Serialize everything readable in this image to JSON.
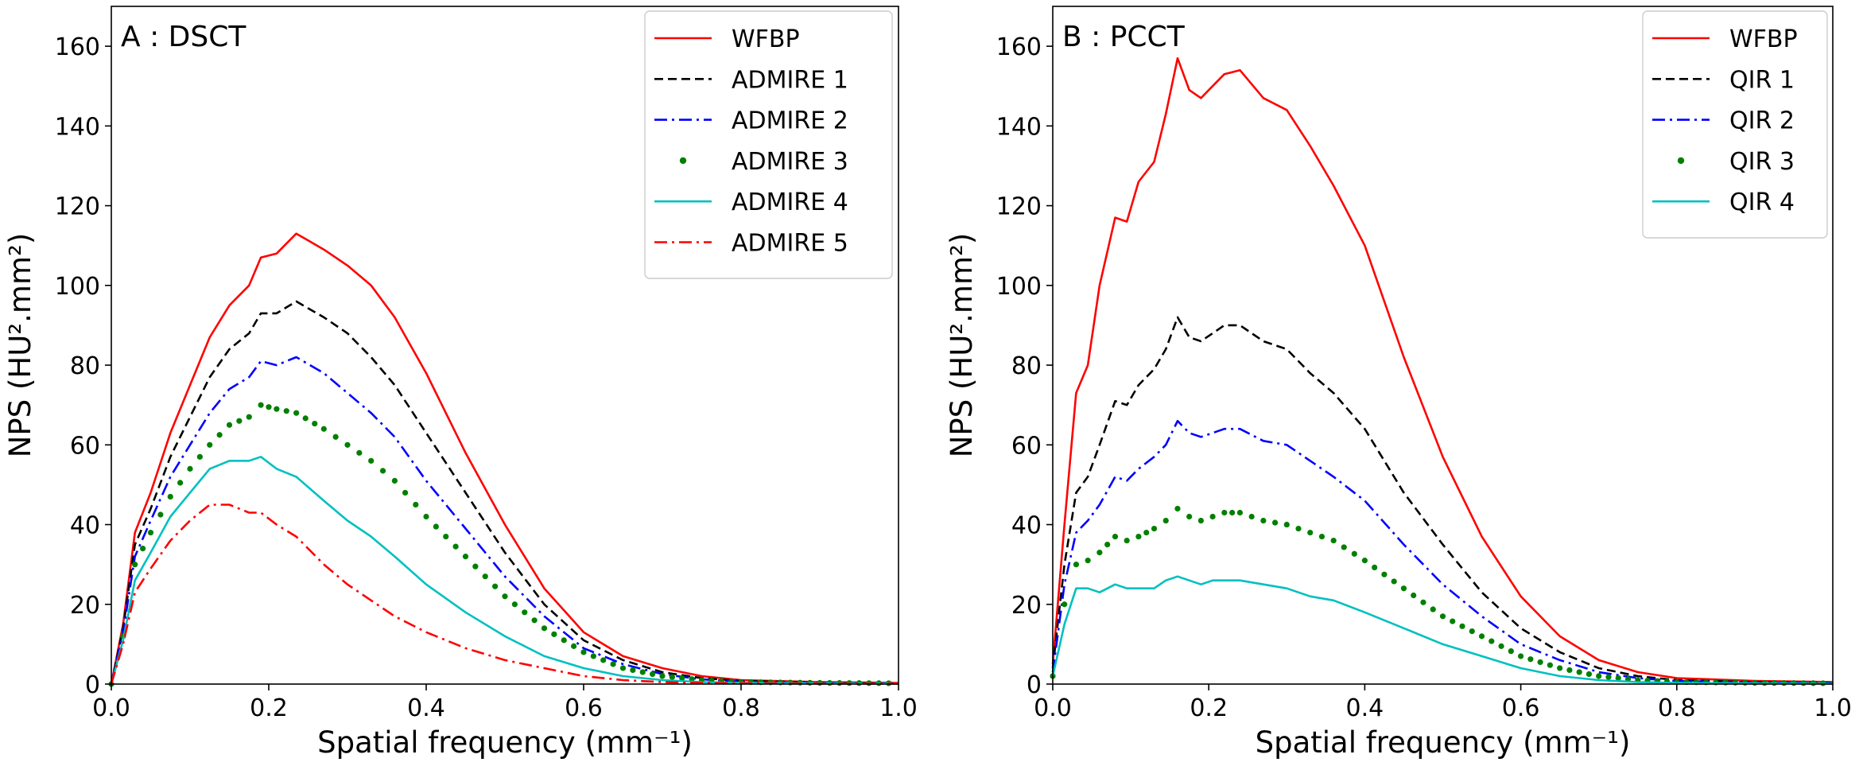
{
  "chart_data": [
    {
      "type": "line",
      "title": "A : DSCT",
      "xlabel": "Spatial frequency (mm⁻¹)",
      "ylabel": "NPS (HU².mm²)",
      "xlim": [
        0,
        1.0
      ],
      "ylim": [
        0,
        170
      ],
      "xticks": [
        "0.0",
        "0.2",
        "0.4",
        "0.6",
        "0.8",
        "1.0"
      ],
      "yticks": [
        "0",
        "20",
        "40",
        "60",
        "80",
        "100",
        "120",
        "140",
        "160"
      ],
      "legend_position": "top-right",
      "series": [
        {
          "name": "WFBP",
          "color": "#ff0000",
          "style": "solid",
          "x": [
            0,
            0.015,
            0.03,
            0.05,
            0.075,
            0.1,
            0.125,
            0.15,
            0.175,
            0.19,
            0.21,
            0.235,
            0.27,
            0.3,
            0.33,
            0.36,
            0.4,
            0.45,
            0.5,
            0.55,
            0.6,
            0.65,
            0.7,
            0.75,
            0.8,
            0.9,
            1.0
          ],
          "values": [
            0,
            15,
            38,
            48,
            63,
            75,
            87,
            95,
            100,
            107,
            108,
            113,
            109,
            105,
            100,
            92,
            78,
            58,
            40,
            24,
            13,
            7,
            4,
            2,
            1,
            0.5,
            0.3
          ]
        },
        {
          "name": "ADMIRE 1",
          "color": "#000000",
          "style": "dashed",
          "x": [
            0,
            0.015,
            0.03,
            0.05,
            0.075,
            0.1,
            0.125,
            0.15,
            0.175,
            0.19,
            0.21,
            0.235,
            0.27,
            0.3,
            0.33,
            0.36,
            0.4,
            0.45,
            0.5,
            0.55,
            0.6,
            0.65,
            0.7,
            0.75,
            0.8,
            0.9,
            1.0
          ],
          "values": [
            0,
            14,
            35,
            44,
            57,
            67,
            77,
            84,
            88,
            93,
            93,
            96,
            92,
            88,
            82,
            75,
            63,
            48,
            33,
            20,
            11,
            6,
            3,
            1.5,
            0.8,
            0.4,
            0.2
          ]
        },
        {
          "name": "ADMIRE 2",
          "color": "#0000ff",
          "style": "dashdot",
          "x": [
            0,
            0.015,
            0.03,
            0.05,
            0.075,
            0.1,
            0.125,
            0.15,
            0.175,
            0.19,
            0.21,
            0.235,
            0.27,
            0.3,
            0.33,
            0.36,
            0.4,
            0.45,
            0.5,
            0.55,
            0.6,
            0.65,
            0.7,
            0.75,
            0.8,
            0.9,
            1.0
          ],
          "values": [
            0,
            13,
            32,
            41,
            52,
            60,
            68,
            74,
            77,
            81,
            80,
            82,
            78,
            73,
            68,
            62,
            51,
            39,
            27,
            17,
            9,
            5,
            2.5,
            1.2,
            0.6,
            0.3,
            0.2
          ]
        },
        {
          "name": "ADMIRE 3",
          "color": "#008000",
          "style": "dotted",
          "x": [
            0,
            0.015,
            0.03,
            0.05,
            0.075,
            0.1,
            0.125,
            0.15,
            0.175,
            0.19,
            0.21,
            0.235,
            0.27,
            0.3,
            0.33,
            0.36,
            0.4,
            0.45,
            0.5,
            0.55,
            0.6,
            0.65,
            0.7,
            0.75,
            0.8,
            0.9,
            1.0
          ],
          "values": [
            0,
            12,
            30,
            38,
            47,
            54,
            60,
            65,
            67,
            70,
            69,
            68,
            64,
            60,
            56,
            51,
            42,
            32,
            22,
            14,
            8,
            4,
            2,
            1,
            0.5,
            0.3,
            0.2
          ]
        },
        {
          "name": "ADMIRE 4",
          "color": "#00c0c0",
          "style": "solid",
          "x": [
            0,
            0.015,
            0.03,
            0.05,
            0.075,
            0.1,
            0.125,
            0.15,
            0.175,
            0.19,
            0.21,
            0.235,
            0.27,
            0.3,
            0.33,
            0.36,
            0.4,
            0.45,
            0.5,
            0.55,
            0.6,
            0.65,
            0.7,
            0.75,
            0.8,
            0.9,
            1.0
          ],
          "values": [
            0,
            11,
            26,
            33,
            42,
            48,
            54,
            56,
            56,
            57,
            54,
            52,
            46,
            41,
            37,
            32,
            25,
            18,
            12,
            7,
            4,
            2,
            1,
            0.5,
            0.3,
            0.2,
            0.1
          ]
        },
        {
          "name": "ADMIRE 5",
          "color": "#ff0000",
          "style": "dashdot",
          "x": [
            0,
            0.015,
            0.03,
            0.05,
            0.075,
            0.1,
            0.125,
            0.15,
            0.175,
            0.19,
            0.21,
            0.235,
            0.27,
            0.3,
            0.33,
            0.36,
            0.4,
            0.45,
            0.5,
            0.55,
            0.6,
            0.65,
            0.7,
            0.75,
            0.8,
            0.9,
            1.0
          ],
          "values": [
            0,
            10,
            23,
            29,
            36,
            41,
            45,
            45,
            43,
            43,
            40,
            37,
            30,
            25,
            21,
            17,
            13,
            9,
            6,
            4,
            2,
            1,
            0.5,
            0.3,
            0.2,
            0.1,
            0.1
          ]
        }
      ]
    },
    {
      "type": "line",
      "title": "B : PCCT",
      "xlabel": "Spatial frequency (mm⁻¹)",
      "ylabel": "NPS (HU².mm²)",
      "xlim": [
        0,
        1.0
      ],
      "ylim": [
        0,
        170
      ],
      "xticks": [
        "0.0",
        "0.2",
        "0.4",
        "0.6",
        "0.8",
        "1.0"
      ],
      "yticks": [
        "0",
        "20",
        "40",
        "60",
        "80",
        "100",
        "120",
        "140",
        "160"
      ],
      "legend_position": "top-right",
      "series": [
        {
          "name": "WFBP",
          "color": "#ff0000",
          "style": "solid",
          "x": [
            0,
            0.015,
            0.03,
            0.045,
            0.06,
            0.08,
            0.095,
            0.11,
            0.13,
            0.145,
            0.16,
            0.175,
            0.19,
            0.205,
            0.22,
            0.24,
            0.27,
            0.3,
            0.33,
            0.36,
            0.4,
            0.45,
            0.5,
            0.55,
            0.6,
            0.65,
            0.7,
            0.75,
            0.8,
            0.9,
            1.0
          ],
          "values": [
            5,
            40,
            73,
            80,
            100,
            117,
            116,
            126,
            131,
            143,
            157,
            149,
            147,
            150,
            153,
            154,
            147,
            144,
            135,
            125,
            110,
            82,
            57,
            37,
            22,
            12,
            6,
            3,
            1.5,
            0.8,
            0.5
          ]
        },
        {
          "name": "QIR 1",
          "color": "#000000",
          "style": "dashed",
          "x": [
            0,
            0.015,
            0.03,
            0.045,
            0.06,
            0.08,
            0.095,
            0.11,
            0.13,
            0.145,
            0.16,
            0.175,
            0.19,
            0.205,
            0.22,
            0.24,
            0.27,
            0.3,
            0.33,
            0.36,
            0.4,
            0.45,
            0.5,
            0.55,
            0.6,
            0.65,
            0.7,
            0.75,
            0.8,
            0.9,
            1.0
          ],
          "values": [
            4,
            30,
            48,
            52,
            60,
            71,
            70,
            75,
            79,
            84,
            92,
            87,
            86,
            88,
            90,
            90,
            86,
            84,
            78,
            73,
            64,
            48,
            35,
            23,
            14,
            8,
            4,
            2,
            1,
            0.5,
            0.3
          ]
        },
        {
          "name": "QIR 2",
          "color": "#0000ff",
          "style": "dashdot",
          "x": [
            0,
            0.015,
            0.03,
            0.045,
            0.06,
            0.08,
            0.095,
            0.11,
            0.13,
            0.145,
            0.16,
            0.175,
            0.19,
            0.205,
            0.22,
            0.24,
            0.27,
            0.3,
            0.33,
            0.36,
            0.4,
            0.45,
            0.5,
            0.55,
            0.6,
            0.65,
            0.7,
            0.75,
            0.8,
            0.9,
            1.0
          ],
          "values": [
            3,
            25,
            38,
            41,
            45,
            52,
            51,
            54,
            57,
            60,
            66,
            63,
            62,
            63,
            64,
            64,
            61,
            60,
            56,
            52,
            46,
            35,
            25,
            17,
            10,
            6,
            3,
            1.5,
            0.8,
            0.4,
            0.2
          ]
        },
        {
          "name": "QIR 3",
          "color": "#008000",
          "style": "dotted",
          "x": [
            0,
            0.015,
            0.03,
            0.045,
            0.06,
            0.08,
            0.095,
            0.11,
            0.13,
            0.145,
            0.16,
            0.175,
            0.19,
            0.205,
            0.22,
            0.24,
            0.27,
            0.3,
            0.33,
            0.36,
            0.4,
            0.45,
            0.5,
            0.55,
            0.6,
            0.65,
            0.7,
            0.75,
            0.8,
            0.9,
            1.0
          ],
          "values": [
            2,
            20,
            30,
            31,
            33,
            37,
            36,
            37,
            39,
            41,
            44,
            42,
            41,
            42,
            43,
            43,
            41,
            40,
            38,
            36,
            31,
            24,
            17,
            12,
            7,
            4,
            2,
            1,
            0.5,
            0.3,
            0.2
          ]
        },
        {
          "name": "QIR 4",
          "color": "#00c0c0",
          "style": "solid",
          "x": [
            0,
            0.015,
            0.03,
            0.045,
            0.06,
            0.08,
            0.095,
            0.11,
            0.13,
            0.145,
            0.16,
            0.175,
            0.19,
            0.205,
            0.22,
            0.24,
            0.27,
            0.3,
            0.33,
            0.36,
            0.4,
            0.45,
            0.5,
            0.55,
            0.6,
            0.65,
            0.7,
            0.75,
            0.8,
            0.9,
            1.0
          ],
          "values": [
            2,
            15,
            24,
            24,
            23,
            25,
            24,
            24,
            24,
            26,
            27,
            26,
            25,
            26,
            26,
            26,
            25,
            24,
            22,
            21,
            18,
            14,
            10,
            7,
            4,
            2,
            1,
            0.5,
            0.3,
            0.2,
            0.1
          ]
        }
      ]
    }
  ]
}
